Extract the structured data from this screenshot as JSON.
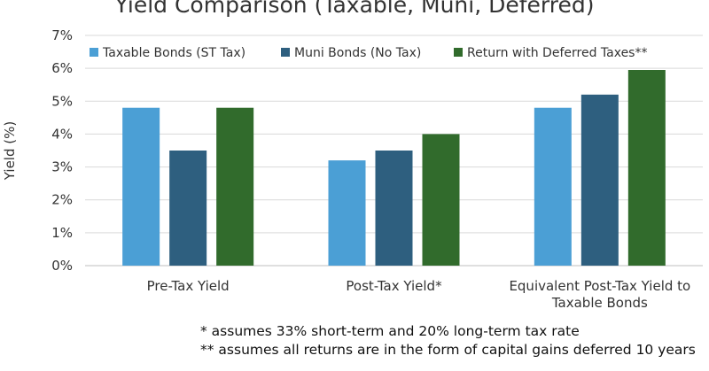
{
  "chart_data": {
    "type": "bar",
    "title": "Yield Comparison (Taxable, Muni, Deferred)",
    "xlabel": "",
    "ylabel": "Yield (%)",
    "ylim": [
      0,
      7
    ],
    "yticks": [
      "0%",
      "1%",
      "2%",
      "3%",
      "4%",
      "5%",
      "6%",
      "7%"
    ],
    "grid": true,
    "legend_position": "top",
    "categories": [
      [
        "Pre-Tax Yield"
      ],
      [
        "Post-Tax Yield*"
      ],
      [
        "Equivalent Post-Tax Yield to",
        "Taxable Bonds"
      ]
    ],
    "series": [
      {
        "name": "Taxable Bonds (ST Tax)",
        "color": "#4b9fd5",
        "values": [
          4.8,
          3.2,
          4.8
        ]
      },
      {
        "name": "Muni Bonds (No Tax)",
        "color": "#2e5f7f",
        "values": [
          3.5,
          3.5,
          5.2
        ]
      },
      {
        "name": "Return with Deferred Taxes**",
        "color": "#316b2c",
        "values": [
          4.8,
          4.0,
          5.95
        ]
      }
    ],
    "footnotes": [
      "* assumes 33% short-term and 20% long-term tax rate",
      "** assumes all returns are in the form of capital gains deferred 10 years"
    ]
  }
}
